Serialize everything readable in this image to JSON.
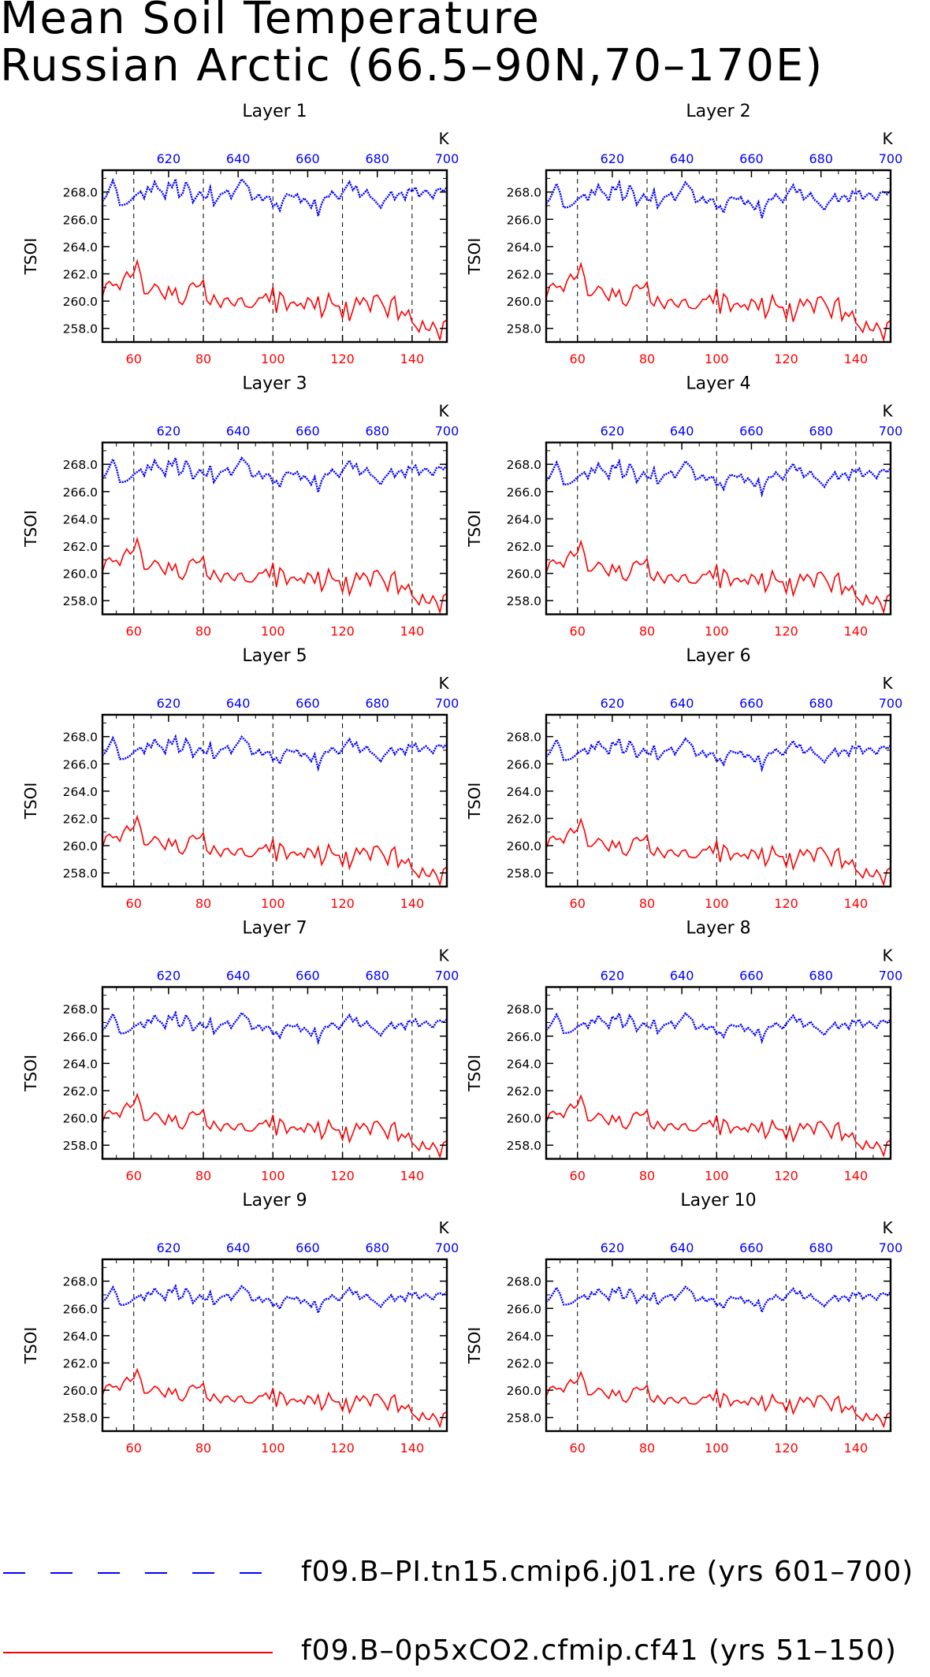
{
  "title": {
    "line1": "Mean Soil Temperature",
    "line2": "Russian Arctic (66.5–90N,70–170E)"
  },
  "legend": [
    {
      "label": "f09.B–PI.tn15.cmip6.j01.re (yrs 601–700)",
      "color": "#0000ff",
      "style": "dashed"
    },
    {
      "label": "f09.B–0p5xCO2.cfmip.cf41 (yrs 51–150)",
      "color": "#ff0000",
      "style": "solid"
    }
  ],
  "colors": {
    "top_axis": "#0000ff",
    "bottom_axis": "#ff0000",
    "frame": "#000000"
  },
  "chart_data": {
    "type": "line",
    "panels_note": "10 panels, one per soil layer",
    "ylabel": "TSOI",
    "top_axis_unit": "K",
    "ylim": [
      257.0,
      269.6
    ],
    "yticks": [
      "258.0",
      "260.0",
      "262.0",
      "264.0",
      "266.0",
      "268.0"
    ],
    "bottom_xlim": [
      51,
      150
    ],
    "bottom_xticks": [
      60,
      80,
      100,
      120,
      140
    ],
    "top_xlim": [
      601,
      700
    ],
    "top_xticks": [
      620,
      640,
      660,
      680,
      700
    ],
    "gridlines_x": [
      60,
      80,
      100,
      120,
      140
    ],
    "panels": [
      {
        "layer": "Layer 1",
        "blue_mean": 267.8,
        "red_mean": 260.0
      },
      {
        "layer": "Layer 2",
        "blue_mean": 267.6,
        "red_mean": 259.9
      },
      {
        "layer": "Layer 3",
        "blue_mean": 267.4,
        "red_mean": 259.8
      },
      {
        "layer": "Layer 4",
        "blue_mean": 267.2,
        "red_mean": 259.7
      },
      {
        "layer": "Layer 5",
        "blue_mean": 267.0,
        "red_mean": 259.6
      },
      {
        "layer": "Layer 6",
        "blue_mean": 266.9,
        "red_mean": 259.5
      },
      {
        "layer": "Layer 7",
        "blue_mean": 266.8,
        "red_mean": 259.4
      },
      {
        "layer": "Layer 8",
        "blue_mean": 266.8,
        "red_mean": 259.4
      },
      {
        "layer": "Layer 9",
        "blue_mean": 266.8,
        "red_mean": 259.4
      },
      {
        "layer": "Layer 10",
        "blue_mean": 266.8,
        "red_mean": 259.3
      }
    ],
    "series": [
      {
        "name": "f09.B–PI.tn15.cmip6.j01.re (yrs 601–700)",
        "axis": "top",
        "color": "#0000ff",
        "values": [
          267.3,
          267.6,
          268.2,
          268.8,
          268.1,
          267.0,
          267.0,
          267.1,
          267.3,
          267.6,
          267.8,
          268.0,
          267.5,
          268.3,
          268.0,
          268.7,
          268.2,
          268.0,
          267.5,
          268.6,
          268.3,
          268.9,
          267.6,
          267.8,
          268.7,
          268.2,
          267.2,
          267.6,
          268.0,
          267.6,
          267.5,
          268.3,
          267.0,
          267.4,
          267.8,
          267.9,
          268.1,
          267.5,
          268.0,
          268.4,
          268.9,
          268.6,
          268.3,
          267.4,
          267.5,
          267.8,
          267.3,
          267.6,
          267.6,
          266.9,
          267.1,
          266.6,
          267.4,
          267.8,
          267.7,
          267.6,
          267.8,
          267.2,
          267.5,
          267.2,
          266.8,
          267.4,
          266.2,
          267.1,
          267.6,
          267.6,
          268.0,
          267.7,
          267.4,
          267.9,
          268.3,
          268.7,
          268.1,
          268.4,
          267.6,
          267.8,
          268.1,
          267.6,
          267.4,
          267.1,
          266.8,
          267.3,
          267.6,
          268.0,
          267.4,
          267.8,
          267.9,
          267.4,
          268.2,
          268.0,
          268.3,
          267.6,
          267.9,
          268.1,
          267.8,
          267.5,
          268.1,
          268.2,
          268.0,
          268.3
        ]
      },
      {
        "name": "f09.B–0p5xCO2.cfmip.cf41 (yrs 51–150)",
        "axis": "bottom",
        "color": "#ff0000",
        "values": [
          260.4,
          261.3,
          261.5,
          261.2,
          261.3,
          260.9,
          261.7,
          262.2,
          261.8,
          262.1,
          263.0,
          262.0,
          260.6,
          260.6,
          260.9,
          261.3,
          261.1,
          260.6,
          260.2,
          261.1,
          260.5,
          261.0,
          260.0,
          259.8,
          260.3,
          261.2,
          261.4,
          261.1,
          261.2,
          261.6,
          260.1,
          259.8,
          260.5,
          260.0,
          259.6,
          260.2,
          260.3,
          259.9,
          259.7,
          260.2,
          260.3,
          259.7,
          259.6,
          259.6,
          259.9,
          260.3,
          260.3,
          260.6,
          260.0,
          261.1,
          259.2,
          260.7,
          260.4,
          259.4,
          259.9,
          260.0,
          259.7,
          259.9,
          259.5,
          260.3,
          260.1,
          259.5,
          260.4,
          258.9,
          259.5,
          260.6,
          259.9,
          259.7,
          259.7,
          258.8,
          260.0,
          258.6,
          259.4,
          260.3,
          259.8,
          260.3,
          260.0,
          259.3,
          260.4,
          260.5,
          260.1,
          259.6,
          258.9,
          260.1,
          260.4,
          258.7,
          259.3,
          259.0,
          259.4,
          258.5,
          258.2,
          257.8,
          258.6,
          258.0,
          257.9,
          258.5,
          258.0,
          257.2,
          258.5,
          258.7
        ]
      }
    ],
    "series_style": [
      {
        "color": "#0000ff",
        "pattern": "dotted-dense",
        "width": 2.4
      },
      {
        "color": "#ff0000",
        "pattern": "solid",
        "width": 1.6
      }
    ]
  }
}
